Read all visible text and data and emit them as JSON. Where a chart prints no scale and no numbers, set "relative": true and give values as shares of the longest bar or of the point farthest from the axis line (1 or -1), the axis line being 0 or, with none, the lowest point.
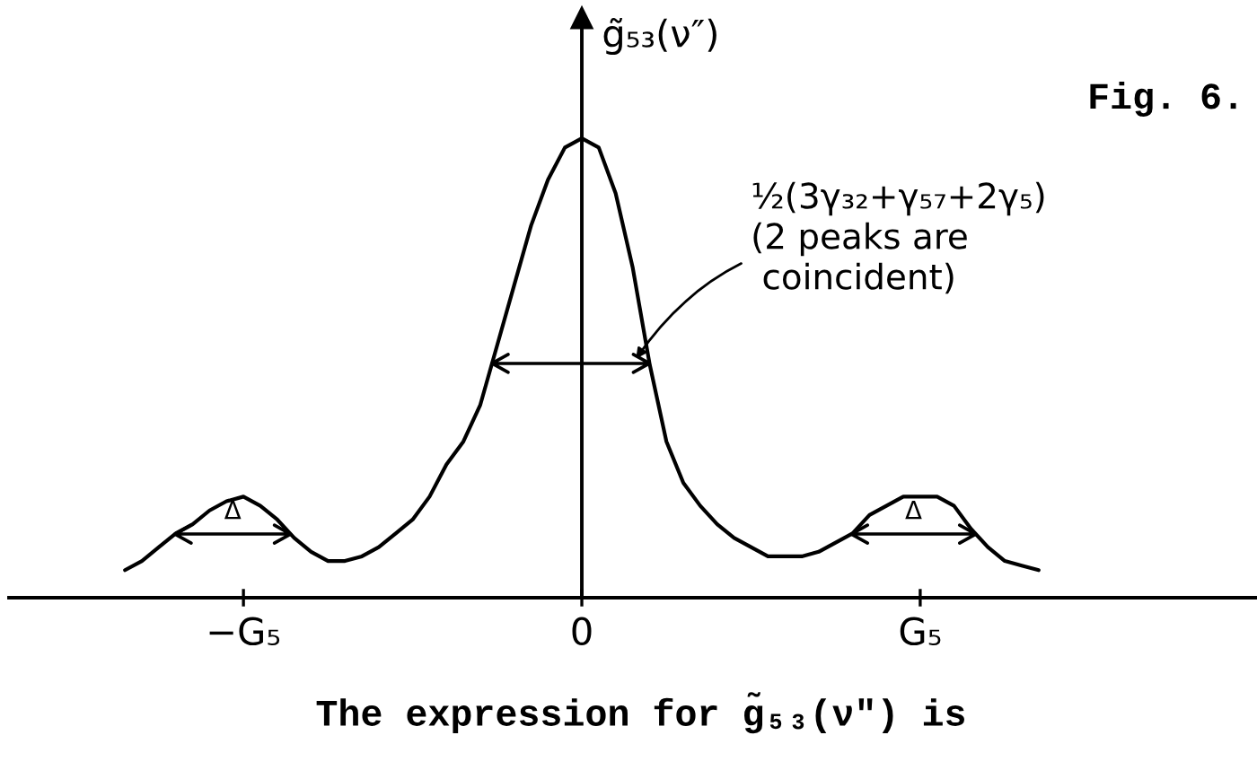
{
  "chart_data": {
    "type": "line",
    "title": "Fig. 6.",
    "ylabel": "g̃₅₃(ν″)",
    "relative": true,
    "categories": [
      null,
      null,
      null,
      null,
      null,
      null,
      null,
      "−G₅",
      null,
      null,
      null,
      null,
      null,
      null,
      null,
      null,
      null,
      null,
      null,
      null,
      null,
      null,
      null,
      null,
      null,
      null,
      null,
      "0",
      null,
      null,
      null,
      null,
      null,
      null,
      null,
      null,
      null,
      null,
      null,
      null,
      null,
      null,
      null,
      null,
      null,
      null,
      null,
      "G₅",
      null,
      null,
      null,
      null,
      null,
      null,
      null
    ],
    "series": [
      {
        "color": "#000000",
        "values": [
          0.06,
          0.08,
          0.11,
          0.14,
          0.16,
          0.19,
          0.21,
          0.22,
          0.2,
          0.17,
          0.13,
          0.1,
          0.08,
          0.08,
          0.09,
          0.11,
          0.14,
          0.17,
          0.22,
          0.29,
          0.34,
          0.42,
          0.55,
          0.68,
          0.81,
          0.91,
          0.98,
          1.0,
          0.98,
          0.88,
          0.72,
          0.51,
          0.34,
          0.25,
          0.2,
          0.16,
          0.13,
          0.11,
          0.09,
          0.09,
          0.09,
          0.1,
          0.12,
          0.14,
          0.18,
          0.2,
          0.22,
          0.22,
          0.22,
          0.2,
          0.15,
          0.11,
          0.08,
          0.07,
          0.06
        ]
      }
    ],
    "annotations": [
      "½(3γ₃₂+γ₅₇+2γ₅)\n(2 peaks are\n coincident)",
      "Δ",
      "Δ",
      "The expression for g̃₅₃(ν″) is"
    ]
  }
}
